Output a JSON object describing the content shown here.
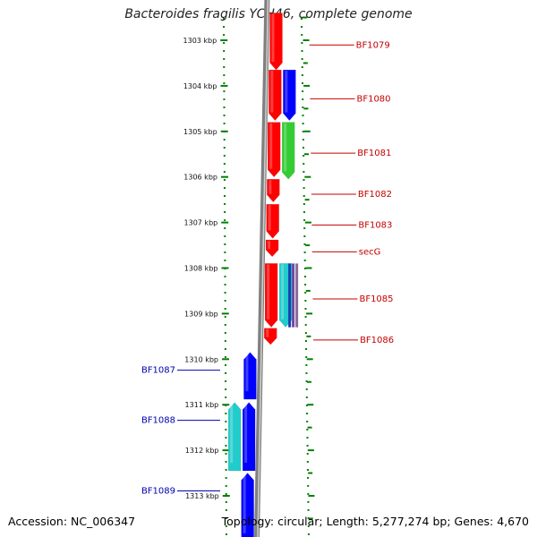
{
  "title": "Bacteroides fragilis YCH46, complete genome",
  "footer": {
    "accession": "Accession: NC_006347",
    "stats": "Topology: circular; Length: 5,277,274 bp; Genes: 4,670"
  },
  "colors": {
    "forward_red": "#ff0000",
    "reverse_blue": "#0000ff",
    "green": "#33cc33",
    "cyan": "#22cccc",
    "backbone": "#808080",
    "ruler": "#008000",
    "label_right": "#c40000",
    "label_left": "#0000b0"
  },
  "ruler_ticks": [
    {
      "kbp": 1303,
      "label": "1303 kbp"
    },
    {
      "kbp": 1304,
      "label": "1304 kbp"
    },
    {
      "kbp": 1305,
      "label": "1305 kbp"
    },
    {
      "kbp": 1306,
      "label": "1306 kbp"
    },
    {
      "kbp": 1307,
      "label": "1307 kbp"
    },
    {
      "kbp": 1308,
      "label": "1308 kbp"
    },
    {
      "kbp": 1309,
      "label": "1309 kbp"
    },
    {
      "kbp": 1310,
      "label": "1310 kbp"
    },
    {
      "kbp": 1311,
      "label": "1311 kbp"
    },
    {
      "kbp": 1312,
      "label": "1312 kbp"
    },
    {
      "kbp": 1313,
      "label": "1313 kbp"
    }
  ],
  "genes": [
    {
      "label": "BF1079",
      "strand": "+",
      "start_kbp": 1302.4,
      "end_kbp": 1303.65,
      "lane": 0,
      "color": "#ff0000"
    },
    {
      "label": "BF1080",
      "strand": "+",
      "start_kbp": 1303.65,
      "end_kbp": 1304.76,
      "lane": 0,
      "color": "#ff0000"
    },
    {
      "label": "",
      "strand": "+",
      "start_kbp": 1303.65,
      "end_kbp": 1304.76,
      "lane": 1,
      "color": "#0000ff"
    },
    {
      "label": "BF1081",
      "strand": "+",
      "start_kbp": 1304.8,
      "end_kbp": 1306.0,
      "lane": 0,
      "color": "#ff0000"
    },
    {
      "label": "",
      "strand": "+",
      "start_kbp": 1304.8,
      "end_kbp": 1306.05,
      "lane": 1,
      "color": "#33cc33"
    },
    {
      "label": "BF1082",
      "strand": "+",
      "start_kbp": 1306.05,
      "end_kbp": 1306.55,
      "lane": 0,
      "color": "#ff0000"
    },
    {
      "label": "BF1083",
      "strand": "+",
      "start_kbp": 1306.6,
      "end_kbp": 1307.35,
      "lane": 0,
      "color": "#ff0000"
    },
    {
      "label": "secG",
      "strand": "+",
      "start_kbp": 1307.38,
      "end_kbp": 1307.75,
      "lane": 0,
      "color": "#ff0000"
    },
    {
      "label": "BF1085",
      "strand": "+",
      "start_kbp": 1307.9,
      "end_kbp": 1309.3,
      "lane": 0,
      "color": "#ff0000"
    },
    {
      "label": "",
      "strand": "+",
      "start_kbp": 1307.9,
      "end_kbp": 1309.3,
      "lane": 1,
      "color": "#22cccc"
    },
    {
      "label": "BF1086",
      "strand": "+",
      "start_kbp": 1309.32,
      "end_kbp": 1309.68,
      "lane": 0,
      "color": "#ff0000"
    },
    {
      "label": "BF1087",
      "strand": "-",
      "start_kbp": 1309.85,
      "end_kbp": 1310.88,
      "lane": 0,
      "color": "#0000ff"
    },
    {
      "label": "BF1088",
      "strand": "-",
      "start_kbp": 1310.95,
      "end_kbp": 1312.45,
      "lane": 0,
      "color": "#0000ff"
    },
    {
      "label": "",
      "strand": "-",
      "start_kbp": 1310.95,
      "end_kbp": 1312.45,
      "lane": 1,
      "color": "#22cccc"
    },
    {
      "label": "BF1089",
      "strand": "-",
      "start_kbp": 1312.5,
      "end_kbp": 1314.0,
      "lane": 0,
      "color": "#0000ff"
    }
  ]
}
